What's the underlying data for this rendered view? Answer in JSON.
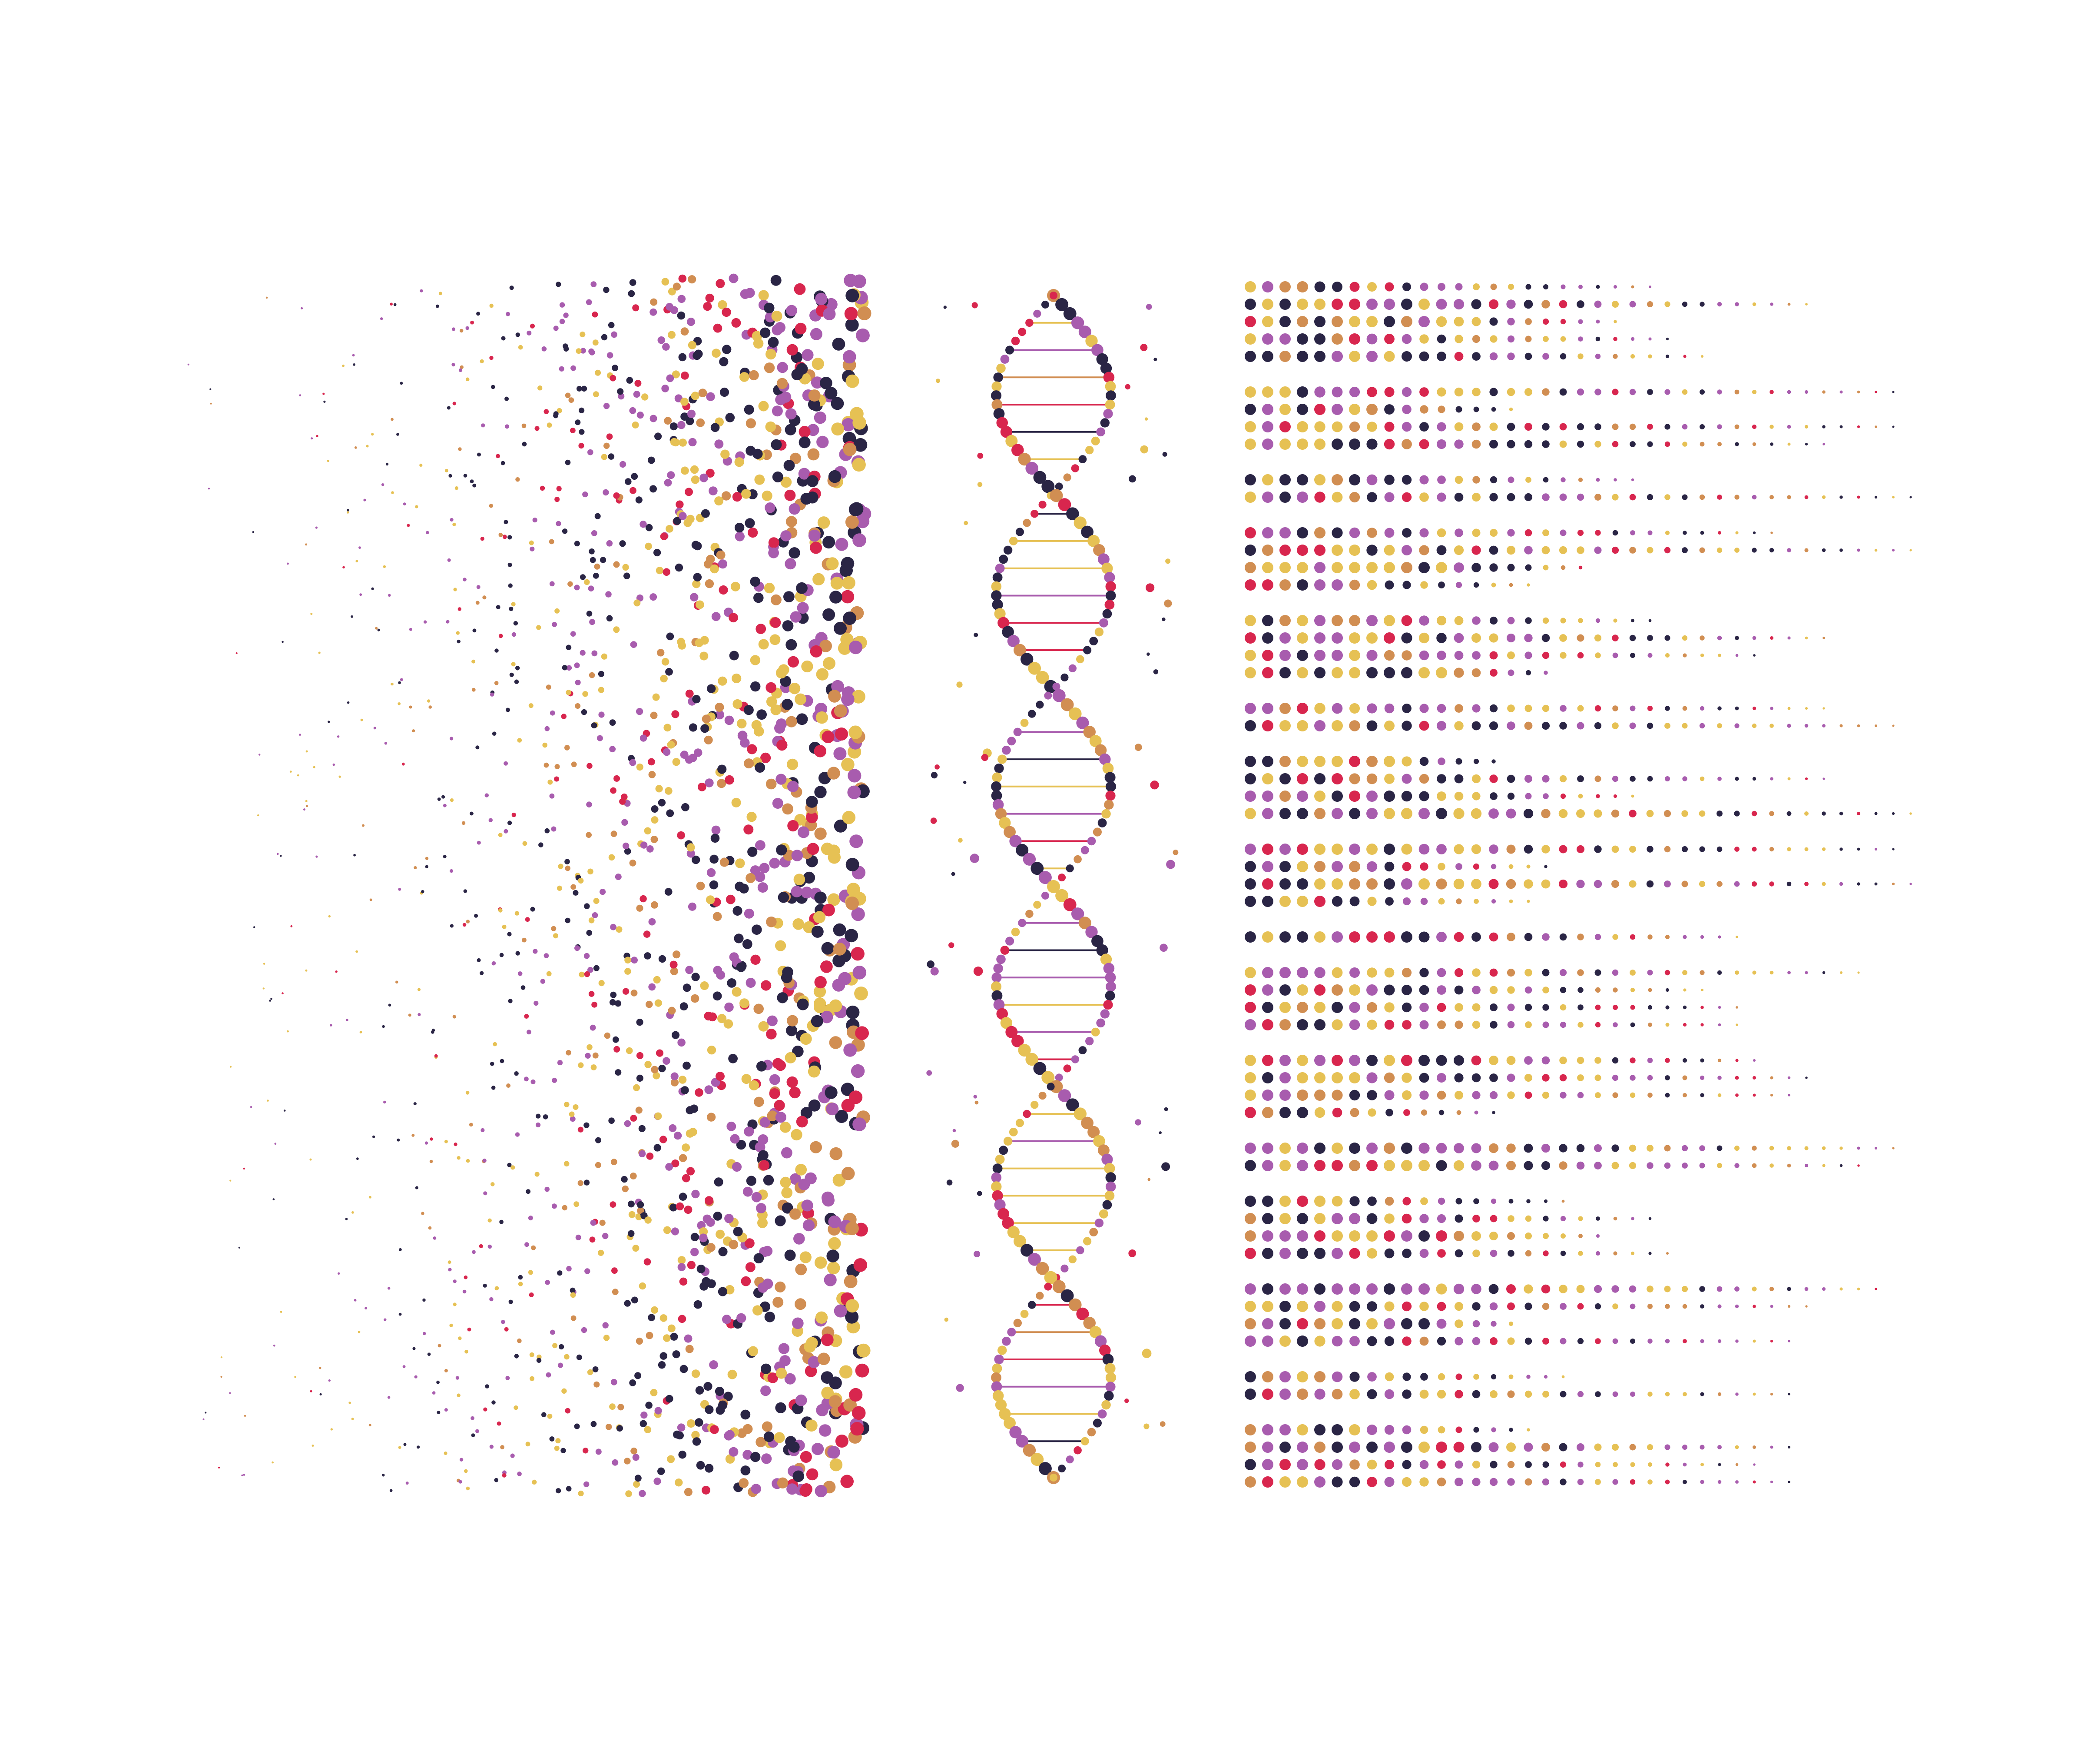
{
  "artwork": {
    "description_visible_text": "",
    "palette": {
      "purple": "#a85cae",
      "gold": "#e6c154",
      "navy": "#2a2545",
      "crimson": "#d8264e",
      "orange": "#d18e52",
      "black": "#111111"
    },
    "panels": [
      {
        "id": "scatter-dots",
        "style": "scattered dots fading leftward"
      },
      {
        "id": "dna-helix",
        "style": "double helix with base-pair rungs"
      },
      {
        "id": "dot-matrix",
        "style": "rows of dots fading rightward"
      }
    ],
    "dna": {
      "twists": 3
    },
    "matrix": {
      "row_groups": [
        5,
        4,
        2,
        4,
        4,
        2,
        4,
        4,
        1,
        4,
        4,
        2,
        4,
        4,
        2,
        4
      ]
    }
  }
}
